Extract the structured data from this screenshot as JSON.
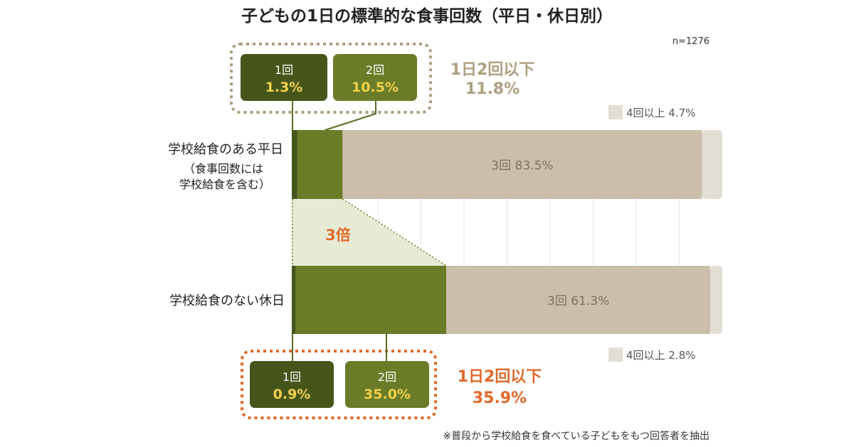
{
  "chart_data": {
    "type": "bar",
    "stacked": true,
    "orientation": "horizontal",
    "title": "子どもの1日の標準的な食事回数（平日・休日別）",
    "sample": "n=1276",
    "note": "※普段から学校給食を食べている子どもをもつ回答者を抽出",
    "xlim": [
      0,
      100
    ],
    "grid": true,
    "categories": [
      {
        "label": "学校給食のある平日",
        "sublabel1": "（食事回数には",
        "sublabel2": "学校給食を含む）"
      },
      {
        "label": "学校給食のない休日",
        "sublabel1": "",
        "sublabel2": ""
      }
    ],
    "series": [
      {
        "name": "1回",
        "values": [
          1.3,
          0.9
        ],
        "color": "#46561b"
      },
      {
        "name": "2回",
        "values": [
          10.5,
          35.0
        ],
        "color": "#6a7c28"
      },
      {
        "name": "3回",
        "values": [
          83.5,
          61.3
        ],
        "color": "#cbbfab"
      },
      {
        "name": "4回以上",
        "values": [
          4.7,
          2.8
        ],
        "color": "#e3ded5"
      }
    ],
    "value_labels": {
      "one": [
        "1.3%",
        "0.9%"
      ],
      "two": [
        "10.5%",
        "35.0%"
      ],
      "three": [
        "3回 83.5%",
        "3回 61.3%"
      ],
      "four": [
        "4回以上 4.7%",
        "4回以上 2.8%"
      ]
    },
    "summary": [
      {
        "label": "1日2回以下",
        "value": "11.8%",
        "color": "#ad9f80"
      },
      {
        "label": "1日2回以下",
        "value": "35.9%",
        "color": "#e2692a"
      }
    ],
    "annotation": "3倍",
    "annotation_color": "#e2692a"
  }
}
